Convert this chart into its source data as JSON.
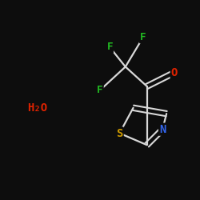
{
  "background_color": "#0d0d0d",
  "bond_color": "#d8d8d8",
  "atom_colors": {
    "F": "#22bb22",
    "O": "#dd2200",
    "S": "#cc9900",
    "N": "#3366ee",
    "H2O": "#dd2200"
  },
  "figsize": [
    2.5,
    2.5
  ],
  "dpi": 100
}
